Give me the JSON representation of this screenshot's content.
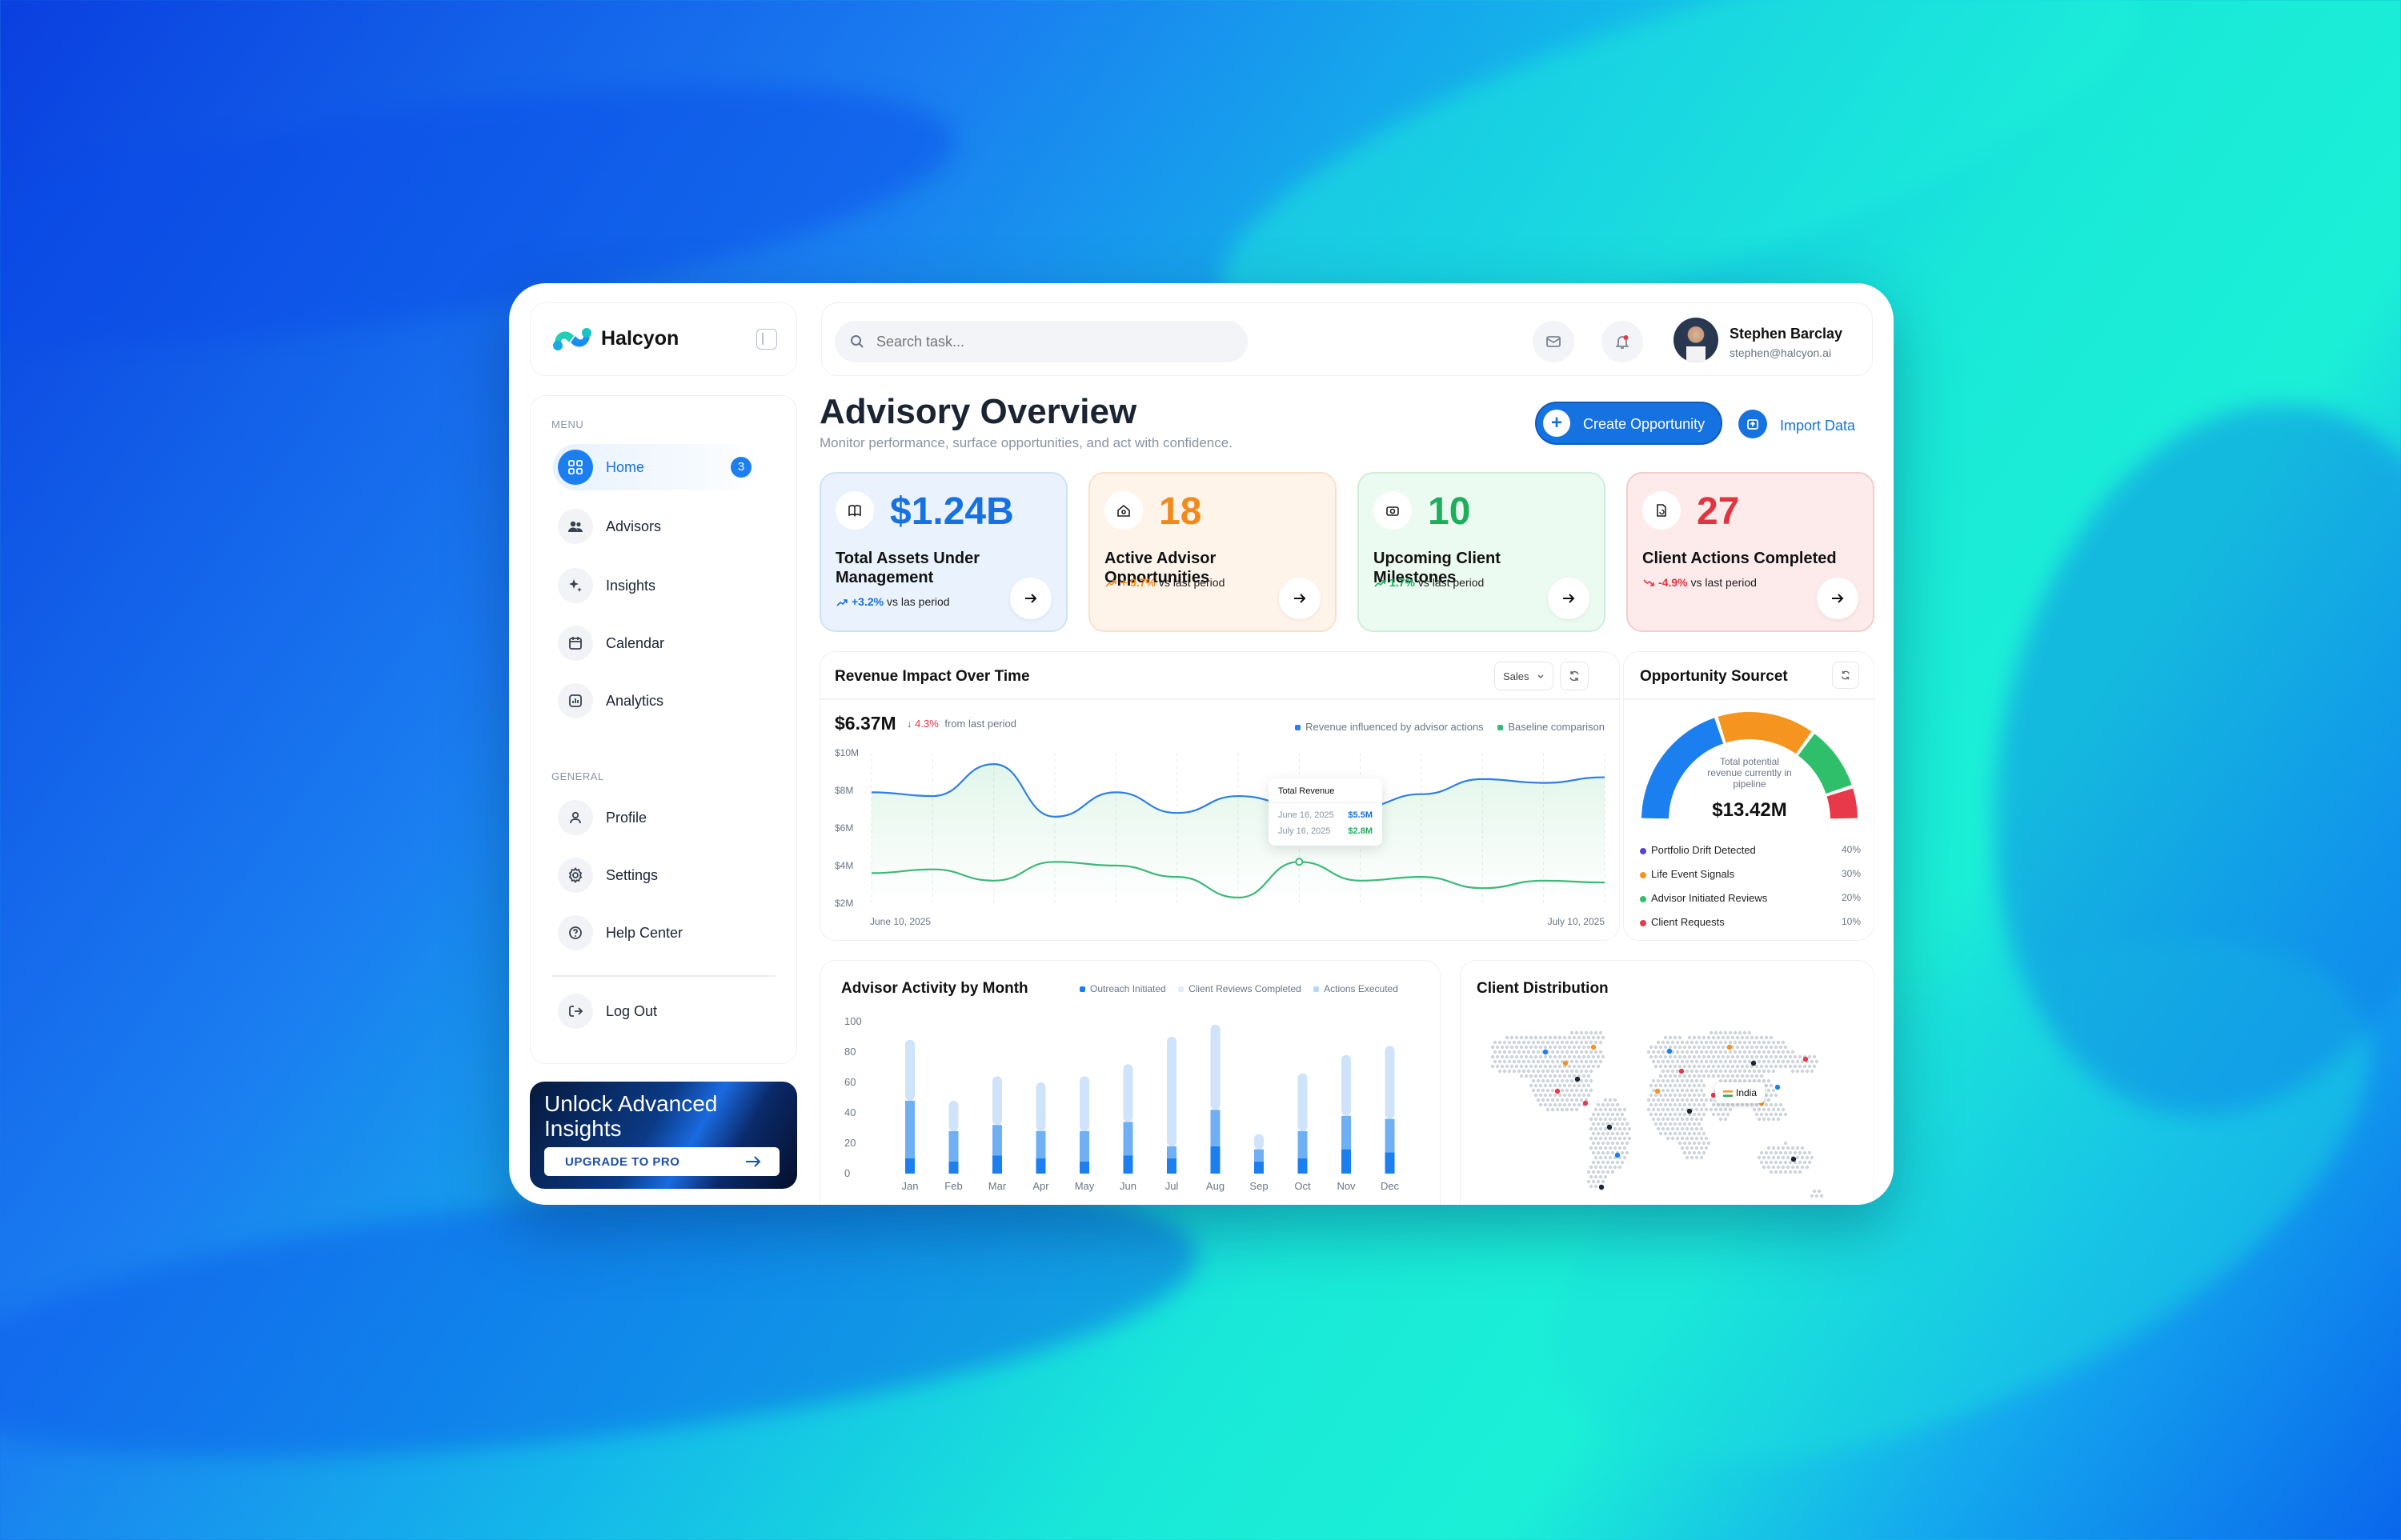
{
  "app": {
    "name": "Halcyon"
  },
  "search": {
    "placeholder": "Search task..."
  },
  "user": {
    "name": "Stephen Barclay",
    "email": "stephen@halcyon.ai"
  },
  "sidebar": {
    "menu_label": "MENU",
    "general_label": "GENERAL",
    "menu": [
      {
        "label": "Home",
        "icon": "grid-icon",
        "badge": "3",
        "active": true
      },
      {
        "label": "Advisors",
        "icon": "users-icon"
      },
      {
        "label": "Insights",
        "icon": "sparkle-icon"
      },
      {
        "label": "Calendar",
        "icon": "calendar-icon"
      },
      {
        "label": "Analytics",
        "icon": "chart-icon"
      }
    ],
    "general": [
      {
        "label": "Profile",
        "icon": "user-icon"
      },
      {
        "label": "Settings",
        "icon": "gear-icon"
      },
      {
        "label": "Help Center",
        "icon": "help-icon"
      }
    ],
    "logout": "Log Out",
    "promo": {
      "title": "Unlock Advanced Insights",
      "button": "UPGRADE TO PRO"
    }
  },
  "header": {
    "title": "Advisory Overview",
    "subtitle": "Monitor performance, surface opportunities, and act with confidence.",
    "create": "Create Opportunity",
    "import": "Import Data"
  },
  "stats": [
    {
      "value": "$1.24B",
      "label": "Total Assets Under Management",
      "change": "+3.2%",
      "change_text": "vs las period",
      "color": "#1672e0",
      "bg": "#eaf3fd",
      "border": "#cfe2f8",
      "trend": "up"
    },
    {
      "value": "18",
      "label": "Active Advisor Opportunities",
      "change": "+ 9.7%",
      "change_text": "vs last period",
      "color": "#f08a1c",
      "bg": "#fff4ea",
      "border": "#fbe0c8",
      "trend": "up"
    },
    {
      "value": "10",
      "label": "Upcoming Client Milestones",
      "change": "1.7%",
      "change_text": "vs last period",
      "color": "#1fae5c",
      "bg": "#ecfbf1",
      "border": "#cdeed9",
      "trend": "up"
    },
    {
      "value": "27",
      "label": "Client Actions Completed",
      "change": "-4.9%",
      "change_text": "vs last period",
      "color": "#e0353f",
      "bg": "#fdebec",
      "border": "#f6caca",
      "trend": "down"
    }
  ],
  "revenue": {
    "title": "Revenue Impact Over Time",
    "dropdown": "Sales",
    "total": "$6.37M",
    "change": "4.3%",
    "change_text": "from last period",
    "legend": [
      "Revenue influenced by advisor actions",
      "Baseline comparison"
    ],
    "tooltip": {
      "title": "Total Revenue",
      "rows": [
        {
          "date": "June 16, 2025",
          "value": "$5.5M"
        },
        {
          "date": "July 16, 2025",
          "value": "$2.8M"
        }
      ]
    },
    "x_start": "June 10, 2025",
    "x_end": "July 10, 2025"
  },
  "sources": {
    "title": "Opportunity Sourcet",
    "center_text": "Total potential revenue currently in pipeline",
    "center_value": "$13.42M",
    "items": [
      {
        "label": "Portfolio Drift Detected",
        "pct": "40%",
        "value": 40,
        "color": "#5a3fd6"
      },
      {
        "label": "Life Event Signals",
        "pct": "30%",
        "value": 30,
        "color": "#f5941e"
      },
      {
        "label": "Advisor Initiated Reviews",
        "pct": "20%",
        "value": 20,
        "color": "#2fbf6b"
      },
      {
        "label": "Client Requests",
        "pct": "10%",
        "value": 10,
        "color": "#e8394a"
      }
    ],
    "arc_colors": [
      "#1c7ff0",
      "#f5941e",
      "#2fbf6b",
      "#e8394a"
    ]
  },
  "activity": {
    "title": "Advisor Activity by Month",
    "legend": [
      "Outreach Initiated",
      "Client Reviews Completed",
      "Actions Executed"
    ]
  },
  "distribution": {
    "title": "Client Distribution",
    "country": "India"
  },
  "chart_data": [
    {
      "type": "line",
      "title": "Revenue Impact Over Time",
      "y_ticks": [
        "$10M",
        "$8M",
        "$6M",
        "$4M",
        "$2M"
      ],
      "ylim": [
        2,
        10
      ],
      "x": [
        1,
        2,
        3,
        4,
        5,
        6,
        7,
        8,
        9,
        10,
        11,
        12,
        13
      ],
      "series": [
        {
          "name": "Revenue influenced by advisor actions",
          "values": [
            7.9,
            7.7,
            9.4,
            6.6,
            7.9,
            6.8,
            7.7,
            7.2,
            7.1,
            7.8,
            8.6,
            8.4,
            8.7
          ],
          "color": "#2f7fe0"
        },
        {
          "name": "Baseline comparison",
          "values": [
            3.6,
            3.8,
            3.2,
            4.2,
            4.0,
            3.4,
            2.3,
            4.2,
            3.2,
            3.4,
            2.8,
            3.2,
            3.1
          ],
          "color": "#3cb878"
        }
      ]
    },
    {
      "type": "bar",
      "title": "Advisor Activity by Month",
      "categories": [
        "Jan",
        "Feb",
        "Mar",
        "Apr",
        "May",
        "Jun",
        "Jul",
        "Aug",
        "Sep",
        "Oct",
        "Nov",
        "Dec"
      ],
      "y_ticks": [
        "100",
        "80",
        "60",
        "40",
        "20",
        "0"
      ],
      "ylim": [
        0,
        100
      ],
      "series": [
        {
          "name": "Outreach Initiated",
          "values": [
            10,
            8,
            12,
            10,
            8,
            12,
            10,
            18,
            8,
            10,
            16,
            14
          ],
          "color": "#1c7ff0"
        },
        {
          "name": "Client Reviews Completed",
          "values": [
            38,
            20,
            20,
            18,
            20,
            22,
            8,
            24,
            8,
            18,
            22,
            22
          ],
          "color": "#6fb0f5"
        },
        {
          "name": "Actions Executed",
          "values": [
            40,
            20,
            32,
            32,
            36,
            38,
            72,
            56,
            10,
            38,
            40,
            48
          ],
          "color": "#cfe3fb"
        }
      ]
    }
  ]
}
